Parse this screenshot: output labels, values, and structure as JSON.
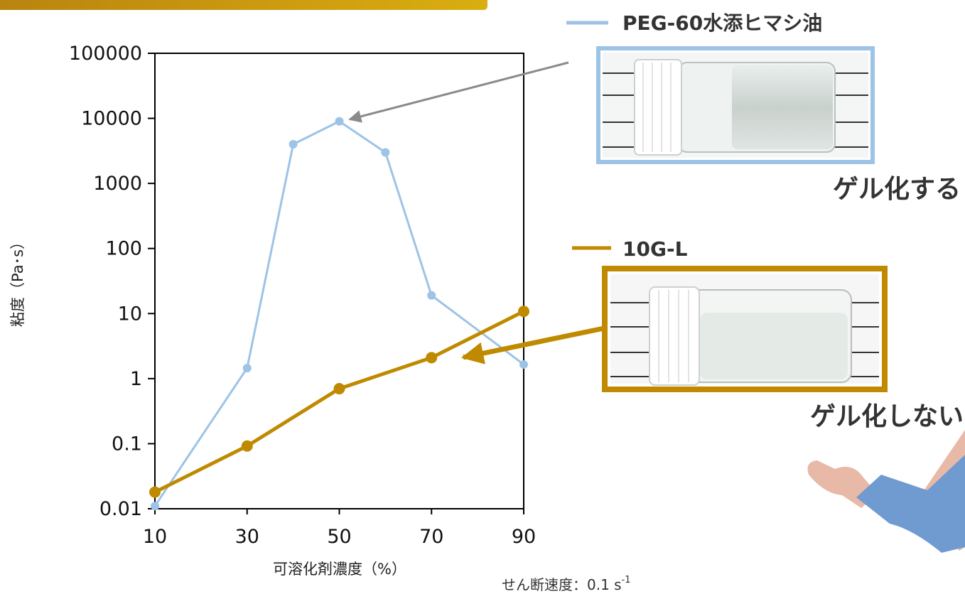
{
  "chart_data": {
    "type": "line",
    "x": [
      10,
      30,
      40,
      50,
      60,
      70,
      90
    ],
    "xticks": [
      "10",
      "30",
      "50",
      "70",
      "90"
    ],
    "xtick_values": [
      10,
      30,
      50,
      70,
      90
    ],
    "yticks": [
      "100000",
      "10000",
      "1000",
      "100",
      "10",
      "1",
      "0.1",
      "0.01"
    ],
    "ytick_values": [
      100000,
      10000,
      1000,
      100,
      10,
      1,
      0.1,
      0.01
    ],
    "xlim": [
      10,
      90
    ],
    "ylim": [
      0.01,
      100000
    ],
    "yscale": "log",
    "xlabel": "可溶化剤濃度（%）",
    "ylabel": "粘度（Pa･s）",
    "grid": false,
    "series": [
      {
        "name": "PEG-60水添ヒマシ油",
        "color": "#9dc3e6",
        "points": [
          [
            10,
            0.011
          ],
          [
            30,
            1.45
          ],
          [
            40,
            4000
          ],
          [
            50,
            9000
          ],
          [
            60,
            3000
          ],
          [
            70,
            19
          ],
          [
            90,
            1.65
          ]
        ]
      },
      {
        "name": "10G-L",
        "color": "#bf8a00",
        "points": [
          [
            10,
            0.018
          ],
          [
            30,
            0.092
          ],
          [
            50,
            0.7
          ],
          [
            70,
            2.1
          ],
          [
            90,
            10.8
          ]
        ]
      }
    ]
  },
  "annotations": {
    "gel_yes": "ゲル化する",
    "gel_no": "ゲル化しない"
  },
  "shear_note": {
    "prefix": "せん断速度：0.1 s",
    "superscript": "-1"
  },
  "colors": {
    "header_bar": "#c8930a",
    "arrow_gray": "#8a8a8a",
    "arrow_gold": "#bf8a00",
    "sleeve": "#6f9bd1",
    "hand": "#e8b9a6"
  }
}
